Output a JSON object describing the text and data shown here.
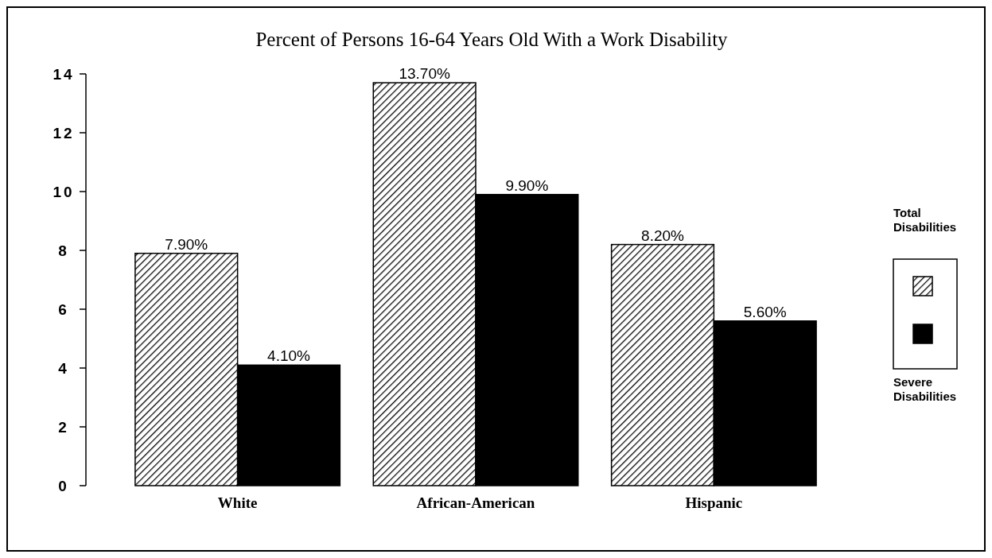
{
  "chart_data": {
    "type": "bar",
    "title": "Percent of Persons 16-64 Years Old With a Work Disability",
    "categories": [
      "White",
      "African-American",
      "Hispanic"
    ],
    "series": [
      {
        "name": "Total Disabilities",
        "color": "#000000",
        "values": [
          7.9,
          13.7,
          8.2
        ],
        "value_labels": [
          "7.90%",
          "13.70%",
          "8.20%"
        ]
      },
      {
        "name": "Severe Disabilities",
        "color": "#000000",
        "values": [
          4.1,
          9.9,
          5.6
        ],
        "value_labels": [
          "4.10%",
          "9.90%",
          "5.60%"
        ]
      }
    ],
    "ylim": [
      0,
      14
    ],
    "yticks": [
      0,
      2,
      4,
      6,
      8,
      10,
      12,
      14
    ],
    "grid": false,
    "legend": "right"
  }
}
